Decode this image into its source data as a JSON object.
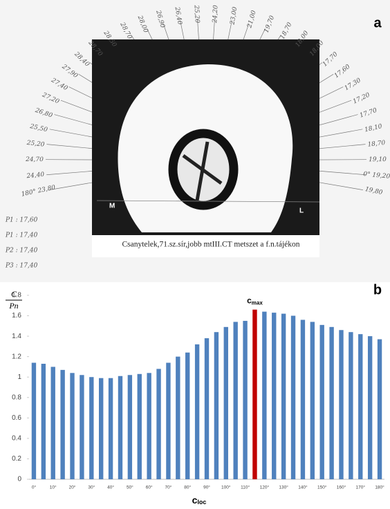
{
  "panel_a": {
    "label": "a",
    "caption": "Csanytelek,71.sz.sír,jobb mtIII.CT metszet a f.n.tájékon",
    "side_left": "M",
    "side_right": "L",
    "radial_labels": [
      "180° 23,80",
      "24,40",
      "24,70",
      "25,20",
      "25,50",
      "26,80",
      "27,20",
      "27,40",
      "27,90",
      "28,40",
      "28,70",
      "28,50",
      "28,70",
      "28,00",
      "26,90",
      "26,40",
      "25,20",
      "24,20",
      "23,00",
      "21,00",
      "19,70",
      "18,70",
      "18,00",
      "18,00",
      "17,70",
      "17,60",
      "17,30",
      "17,20",
      "17,70",
      "18,10",
      "18,70",
      "19,10",
      "0° 19,20",
      "19,80"
    ],
    "notes": [
      "P1 : 17,60",
      "P1 : 17,40",
      "P2 : 17,40",
      "P3 : 17,40"
    ]
  },
  "chart_data": {
    "type": "bar",
    "panel_label": "b",
    "y_label": {
      "numerator": "C",
      "denominator": "Pn"
    },
    "x_label": {
      "text": "c",
      "sub": "loc"
    },
    "annotation": {
      "text": "c",
      "sub": "max"
    },
    "categories": [
      "0°",
      null,
      "10°",
      null,
      "20°",
      null,
      "30°",
      null,
      "40°",
      null,
      "50°",
      null,
      "60°",
      null,
      "70°",
      null,
      "80°",
      null,
      "90°",
      null,
      "100°",
      null,
      "110°",
      null,
      "120°",
      null,
      "130°",
      null,
      "140°",
      null,
      "150°",
      null,
      "160°",
      null,
      "170°",
      null,
      "180°"
    ],
    "values": [
      1.14,
      1.13,
      1.1,
      1.07,
      1.04,
      1.02,
      1.0,
      0.99,
      0.99,
      1.01,
      1.02,
      1.03,
      1.04,
      1.08,
      1.14,
      1.2,
      1.24,
      1.32,
      1.38,
      1.44,
      1.49,
      1.54,
      1.55,
      1.66,
      1.64,
      1.63,
      1.62,
      1.6,
      1.56,
      1.54,
      1.51,
      1.49,
      1.46,
      1.44,
      1.42,
      1.4,
      1.37
    ],
    "colors": [
      "#4f81bd",
      "#4f81bd",
      "#4f81bd",
      "#4f81bd",
      "#4f81bd",
      "#4f81bd",
      "#4f81bd",
      "#4f81bd",
      "#4f81bd",
      "#4f81bd",
      "#4f81bd",
      "#4f81bd",
      "#4f81bd",
      "#4f81bd",
      "#4f81bd",
      "#4f81bd",
      "#4f81bd",
      "#4f81bd",
      "#4f81bd",
      "#4f81bd",
      "#4f81bd",
      "#4f81bd",
      "#4f81bd",
      "#c00000",
      "#4f81bd",
      "#4f81bd",
      "#4f81bd",
      "#4f81bd",
      "#4f81bd",
      "#4f81bd",
      "#4f81bd",
      "#4f81bd",
      "#4f81bd",
      "#4f81bd",
      "#4f81bd",
      "#4f81bd",
      "#4f81bd"
    ],
    "ylim": [
      0,
      1.8
    ],
    "yticks": [
      0,
      0.2,
      0.4,
      0.6,
      0.8,
      1,
      1.2,
      1.4,
      1.6,
      1.8
    ],
    "grid": false
  }
}
